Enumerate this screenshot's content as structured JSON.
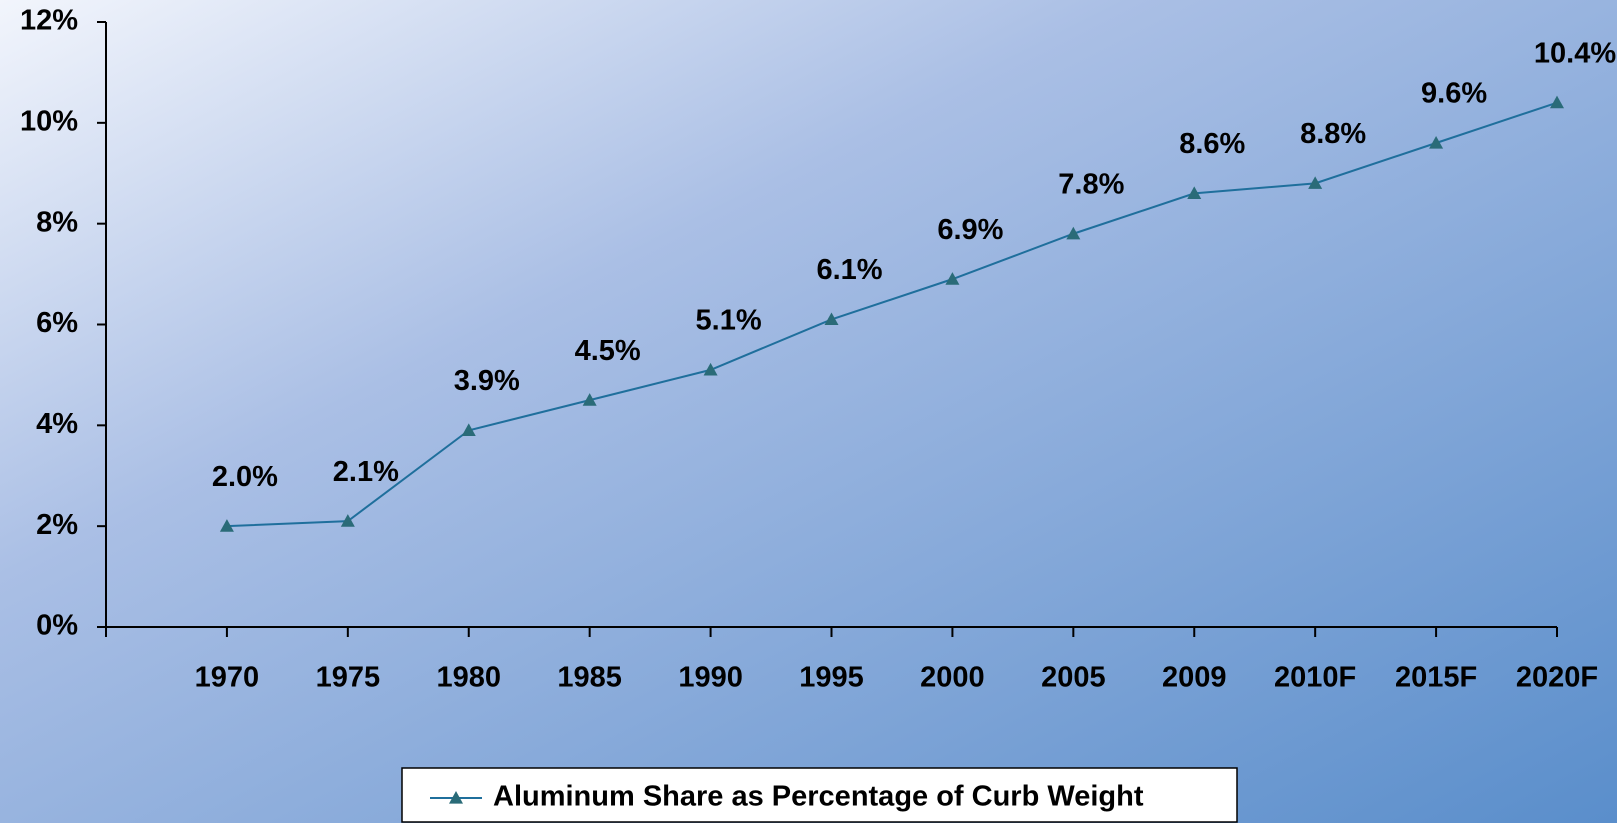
{
  "chart_data": {
    "type": "line",
    "categories": [
      "1970",
      "1975",
      "1980",
      "1985",
      "1990",
      "1995",
      "2000",
      "2005",
      "2009",
      "2010F",
      "2015F",
      "2020F"
    ],
    "series": [
      {
        "name": "Aluminum Share as Percentage of Curb Weight",
        "color": "#1f6f9c",
        "marker_color": "#2a6b78",
        "values": [
          2.0,
          2.1,
          3.9,
          4.5,
          5.1,
          6.1,
          6.9,
          7.8,
          8.6,
          8.8,
          9.6,
          10.4
        ],
        "value_labels": [
          "2.0%",
          "2.1%",
          "3.9%",
          "4.5%",
          "5.1%",
          "6.1%",
          "6.9%",
          "7.8%",
          "8.6%",
          "8.8%",
          "9.6%",
          "10.4%"
        ]
      }
    ],
    "ylim": [
      0,
      12
    ],
    "yticks": [
      {
        "value": 0,
        "label": "0%"
      },
      {
        "value": 2,
        "label": "2%"
      },
      {
        "value": 4,
        "label": "4%"
      },
      {
        "value": 6,
        "label": "6%"
      },
      {
        "value": 8,
        "label": "8%"
      },
      {
        "value": 10,
        "label": "10%"
      },
      {
        "value": 12,
        "label": "12%"
      }
    ],
    "grid": false,
    "legend": "bottom"
  }
}
